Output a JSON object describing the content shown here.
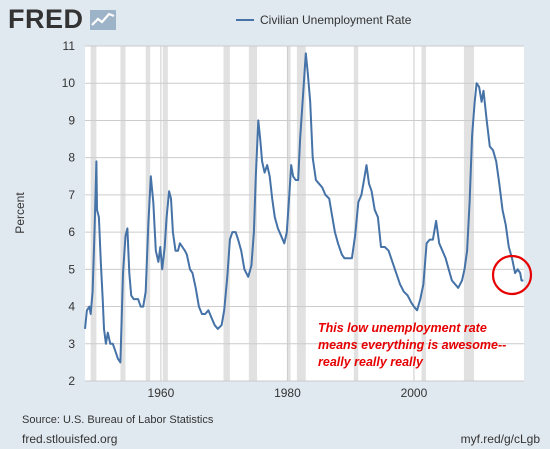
{
  "header": {
    "logo_text": "FRED",
    "legend_label": "Civilian Unemployment Rate"
  },
  "footer": {
    "source": "Source: U.S. Bureau of Labor Statistics",
    "site": "fred.stlouisfed.org",
    "short_url": "myf.red/g/cLgb"
  },
  "annotation": {
    "lines": [
      "This low unemployment rate",
      "means everything is awesome--",
      "really really really"
    ],
    "color": "#e60000"
  },
  "colors": {
    "series": "#4572a7",
    "recession": "#e1e1e1",
    "background": "#e1e9f0"
  },
  "chart_data": {
    "type": "line",
    "title": "",
    "xlabel": "",
    "ylabel": "Percent",
    "xlim": [
      1948,
      2017.4
    ],
    "ylim": [
      2,
      11
    ],
    "x_ticks": [
      1960,
      1980,
      2000
    ],
    "y_ticks": [
      2,
      3,
      4,
      5,
      6,
      7,
      8,
      9,
      10,
      11
    ],
    "grid": true,
    "legend": "top",
    "recessions": [
      [
        1948.9,
        1949.8
      ],
      [
        1953.6,
        1954.4
      ],
      [
        1957.6,
        1958.3
      ],
      [
        1960.3,
        1961.1
      ],
      [
        1969.9,
        1970.9
      ],
      [
        1973.9,
        1975.2
      ],
      [
        1980.0,
        1980.5
      ],
      [
        1981.5,
        1982.9
      ],
      [
        1990.5,
        1991.2
      ],
      [
        2001.2,
        2001.9
      ],
      [
        2007.9,
        2009.5
      ]
    ],
    "series": [
      {
        "values": [
          [
            1948.0,
            3.4
          ],
          [
            1948.3,
            3.9
          ],
          [
            1948.7,
            4.0
          ],
          [
            1948.9,
            3.8
          ],
          [
            1949.2,
            4.4
          ],
          [
            1949.5,
            6.0
          ],
          [
            1949.8,
            7.9
          ],
          [
            1949.9,
            6.6
          ],
          [
            1950.2,
            6.4
          ],
          [
            1950.5,
            5.2
          ],
          [
            1950.8,
            4.2
          ],
          [
            1951.0,
            3.4
          ],
          [
            1951.3,
            3.0
          ],
          [
            1951.6,
            3.3
          ],
          [
            1952.0,
            3.0
          ],
          [
            1952.4,
            3.0
          ],
          [
            1952.8,
            2.8
          ],
          [
            1953.2,
            2.6
          ],
          [
            1953.6,
            2.5
          ],
          [
            1954.0,
            4.9
          ],
          [
            1954.4,
            5.9
          ],
          [
            1954.7,
            6.1
          ],
          [
            1955.0,
            4.9
          ],
          [
            1955.3,
            4.3
          ],
          [
            1955.7,
            4.2
          ],
          [
            1956.0,
            4.2
          ],
          [
            1956.4,
            4.2
          ],
          [
            1956.8,
            4.0
          ],
          [
            1957.2,
            4.0
          ],
          [
            1957.6,
            4.4
          ],
          [
            1958.0,
            6.2
          ],
          [
            1958.4,
            7.5
          ],
          [
            1958.8,
            6.8
          ],
          [
            1959.2,
            5.5
          ],
          [
            1959.6,
            5.2
          ],
          [
            1959.9,
            5.6
          ],
          [
            1960.2,
            5.0
          ],
          [
            1960.6,
            5.6
          ],
          [
            1960.9,
            6.4
          ],
          [
            1961.3,
            7.1
          ],
          [
            1961.6,
            6.9
          ],
          [
            1961.9,
            6.0
          ],
          [
            1962.3,
            5.5
          ],
          [
            1962.7,
            5.5
          ],
          [
            1963.0,
            5.7
          ],
          [
            1963.4,
            5.6
          ],
          [
            1963.8,
            5.5
          ],
          [
            1964.1,
            5.4
          ],
          [
            1964.6,
            5.0
          ],
          [
            1965.0,
            4.9
          ],
          [
            1965.5,
            4.5
          ],
          [
            1966.0,
            4.0
          ],
          [
            1966.5,
            3.8
          ],
          [
            1967.0,
            3.8
          ],
          [
            1967.5,
            3.9
          ],
          [
            1968.0,
            3.7
          ],
          [
            1968.5,
            3.5
          ],
          [
            1969.0,
            3.4
          ],
          [
            1969.6,
            3.5
          ],
          [
            1970.0,
            3.9
          ],
          [
            1970.5,
            4.8
          ],
          [
            1970.9,
            5.8
          ],
          [
            1971.3,
            6.0
          ],
          [
            1971.8,
            6.0
          ],
          [
            1972.2,
            5.8
          ],
          [
            1972.7,
            5.5
          ],
          [
            1973.2,
            5.0
          ],
          [
            1973.8,
            4.8
          ],
          [
            1974.3,
            5.1
          ],
          [
            1974.7,
            6.0
          ],
          [
            1975.0,
            7.5
          ],
          [
            1975.4,
            9.0
          ],
          [
            1975.7,
            8.5
          ],
          [
            1976.0,
            7.9
          ],
          [
            1976.4,
            7.6
          ],
          [
            1976.8,
            7.8
          ],
          [
            1977.2,
            7.5
          ],
          [
            1977.6,
            6.9
          ],
          [
            1978.0,
            6.4
          ],
          [
            1978.5,
            6.1
          ],
          [
            1979.0,
            5.9
          ],
          [
            1979.5,
            5.7
          ],
          [
            1979.9,
            6.0
          ],
          [
            1980.3,
            7.0
          ],
          [
            1980.6,
            7.8
          ],
          [
            1980.9,
            7.5
          ],
          [
            1981.3,
            7.4
          ],
          [
            1981.7,
            7.4
          ],
          [
            1982.0,
            8.5
          ],
          [
            1982.4,
            9.5
          ],
          [
            1982.9,
            10.8
          ],
          [
            1983.2,
            10.3
          ],
          [
            1983.6,
            9.5
          ],
          [
            1984.0,
            8.0
          ],
          [
            1984.5,
            7.4
          ],
          [
            1985.0,
            7.3
          ],
          [
            1985.5,
            7.2
          ],
          [
            1986.0,
            7.0
          ],
          [
            1986.6,
            6.9
          ],
          [
            1987.0,
            6.5
          ],
          [
            1987.5,
            6.0
          ],
          [
            1988.0,
            5.7
          ],
          [
            1988.6,
            5.4
          ],
          [
            1989.0,
            5.3
          ],
          [
            1989.6,
            5.3
          ],
          [
            1990.2,
            5.3
          ],
          [
            1990.7,
            5.9
          ],
          [
            1991.2,
            6.8
          ],
          [
            1991.7,
            7.0
          ],
          [
            1992.1,
            7.4
          ],
          [
            1992.5,
            7.8
          ],
          [
            1992.9,
            7.3
          ],
          [
            1993.3,
            7.1
          ],
          [
            1993.8,
            6.6
          ],
          [
            1994.3,
            6.4
          ],
          [
            1994.8,
            5.6
          ],
          [
            1995.4,
            5.6
          ],
          [
            1996.0,
            5.5
          ],
          [
            1996.6,
            5.2
          ],
          [
            1997.2,
            4.9
          ],
          [
            1997.8,
            4.6
          ],
          [
            1998.4,
            4.4
          ],
          [
            1999.0,
            4.3
          ],
          [
            1999.6,
            4.1
          ],
          [
            2000.0,
            4.0
          ],
          [
            2000.5,
            3.9
          ],
          [
            2001.0,
            4.2
          ],
          [
            2001.5,
            4.6
          ],
          [
            2002.0,
            5.7
          ],
          [
            2002.5,
            5.8
          ],
          [
            2003.0,
            5.8
          ],
          [
            2003.5,
            6.3
          ],
          [
            2004.0,
            5.7
          ],
          [
            2004.5,
            5.5
          ],
          [
            2005.0,
            5.3
          ],
          [
            2005.5,
            5.0
          ],
          [
            2006.0,
            4.7
          ],
          [
            2006.5,
            4.6
          ],
          [
            2007.0,
            4.5
          ],
          [
            2007.6,
            4.7
          ],
          [
            2008.0,
            5.0
          ],
          [
            2008.4,
            5.5
          ],
          [
            2008.8,
            6.8
          ],
          [
            2009.2,
            8.6
          ],
          [
            2009.6,
            9.5
          ],
          [
            2009.9,
            10.0
          ],
          [
            2010.3,
            9.9
          ],
          [
            2010.7,
            9.5
          ],
          [
            2011.0,
            9.8
          ],
          [
            2011.5,
            9.0
          ],
          [
            2012.0,
            8.3
          ],
          [
            2012.5,
            8.2
          ],
          [
            2013.0,
            7.9
          ],
          [
            2013.5,
            7.3
          ],
          [
            2014.0,
            6.6
          ],
          [
            2014.5,
            6.2
          ],
          [
            2015.0,
            5.6
          ],
          [
            2015.5,
            5.3
          ],
          [
            2016.0,
            4.9
          ],
          [
            2016.4,
            5.0
          ],
          [
            2016.8,
            4.9
          ],
          [
            2017.0,
            4.7
          ],
          [
            2017.3,
            4.7
          ]
        ]
      }
    ]
  }
}
